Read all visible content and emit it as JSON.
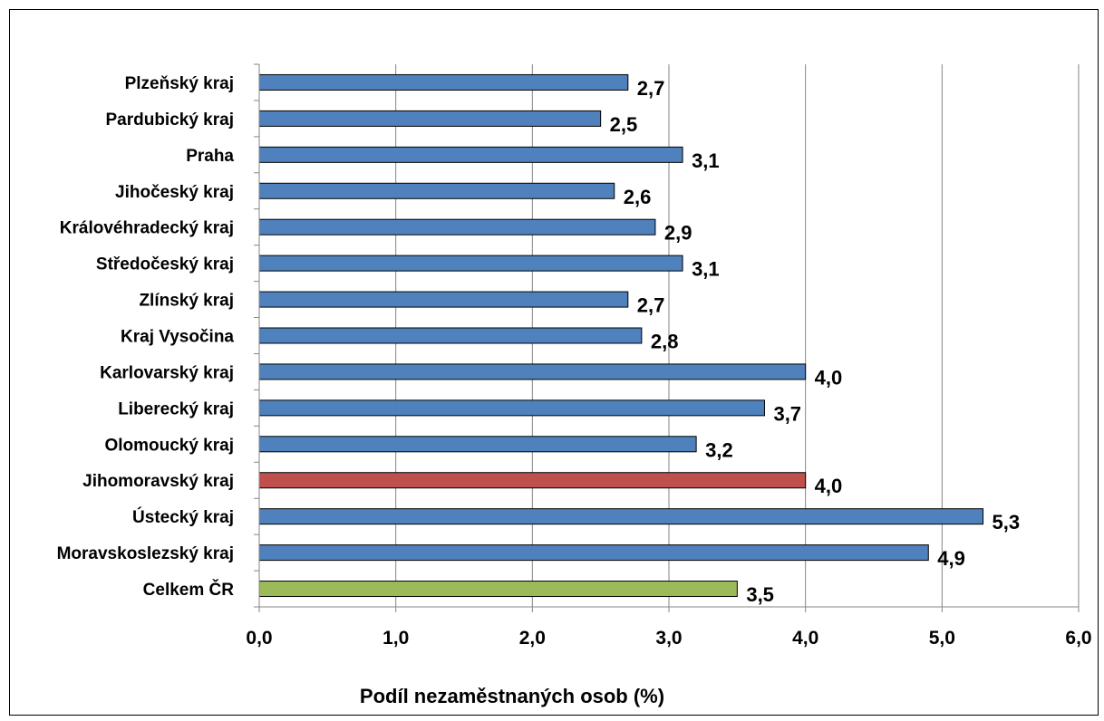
{
  "chart_data": {
    "type": "bar",
    "orientation": "horizontal",
    "categories": [
      "Plzeňský kraj",
      "Pardubický kraj",
      "Praha",
      "Jihočeský kraj",
      "Královéhradecký kraj",
      "Středočeský kraj",
      "Zlínský kraj",
      "Kraj Vysočina",
      "Karlovarský kraj",
      "Liberecký kraj",
      "Olomoucký kraj",
      "Jihomoravský kraj",
      "Ústecký kraj",
      "Moravskoslezský kraj",
      "Celkem ČR"
    ],
    "values": [
      2.7,
      2.5,
      3.1,
      2.6,
      2.9,
      3.1,
      2.7,
      2.8,
      4.0,
      3.7,
      3.2,
      4.0,
      5.3,
      4.9,
      3.5
    ],
    "value_labels": [
      "2,7",
      "2,5",
      "3,1",
      "2,6",
      "2,9",
      "3,1",
      "2,7",
      "2,8",
      "4,0",
      "3,7",
      "3,2",
      "4,0",
      "5,3",
      "4,9",
      "3,5"
    ],
    "bar_colors": [
      "#4F81BD",
      "#4F81BD",
      "#4F81BD",
      "#4F81BD",
      "#4F81BD",
      "#4F81BD",
      "#4F81BD",
      "#4F81BD",
      "#4F81BD",
      "#4F81BD",
      "#4F81BD",
      "#C0504D",
      "#4F81BD",
      "#4F81BD",
      "#9BBB59"
    ],
    "xlabel": "Podíl nezaměstnaných osob (%)",
    "xlim": [
      0,
      6
    ],
    "xticks": [
      0,
      1,
      2,
      3,
      4,
      5,
      6
    ],
    "xtick_labels": [
      "0,0",
      "1,0",
      "2,0",
      "3,0",
      "4,0",
      "5,0",
      "6,0"
    ],
    "grid": "vertical"
  }
}
